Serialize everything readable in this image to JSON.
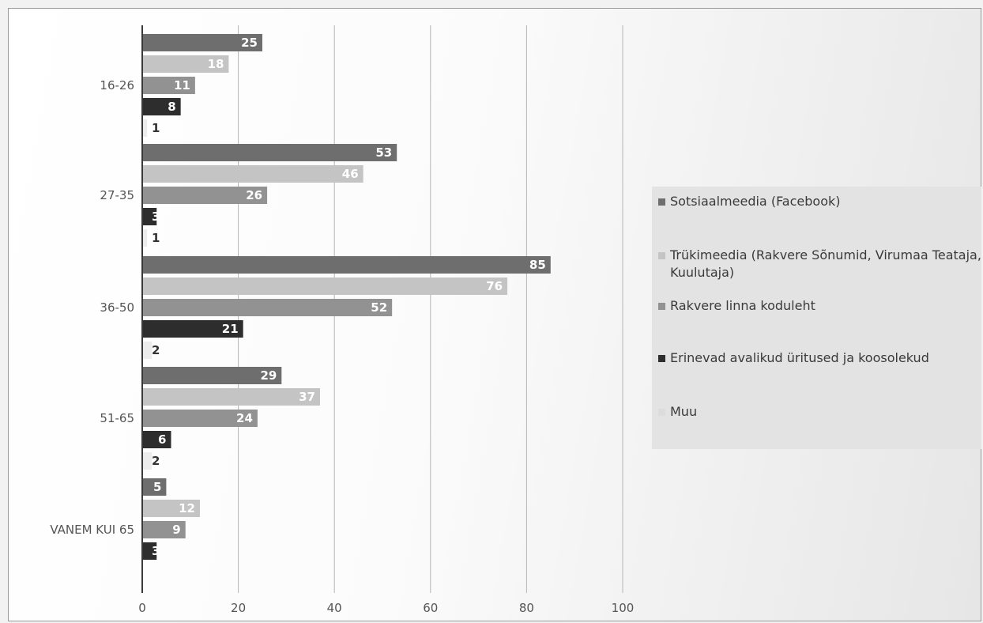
{
  "chart_data": {
    "type": "bar",
    "orientation": "horizontal",
    "categories": [
      "16-26",
      "27-35",
      "36-50",
      "51-65",
      "VANEM KUI 65"
    ],
    "series": [
      {
        "name": "Sotsiaalmeedia (Facebook)",
        "color": "#6e6e6e",
        "label_color": "#ffffff",
        "values": [
          25,
          53,
          85,
          29,
          5
        ]
      },
      {
        "name": "Trükimeedia (Rakvere Sõnumid, Virumaa Teataja, Kuulutaja)",
        "color": "#c4c4c4",
        "label_color": "#ffffff",
        "values": [
          18,
          46,
          76,
          37,
          12
        ]
      },
      {
        "name": "Rakvere linna koduleht",
        "color": "#929292",
        "label_color": "#ffffff",
        "values": [
          11,
          26,
          52,
          24,
          9
        ]
      },
      {
        "name": "Erinevad avalikud üritused ja koosolekud",
        "color": "#2d2d2d",
        "label_color": "#ffffff",
        "values": [
          8,
          3,
          21,
          6,
          3
        ]
      },
      {
        "name": "Muu",
        "color": "#ececec",
        "label_color": "#333333",
        "values": [
          1,
          1,
          2,
          2,
          null
        ]
      }
    ],
    "xlim": [
      0,
      100
    ],
    "xticks": [
      0,
      20,
      40,
      60,
      80,
      100
    ],
    "grid": true,
    "legend_position": "right"
  }
}
